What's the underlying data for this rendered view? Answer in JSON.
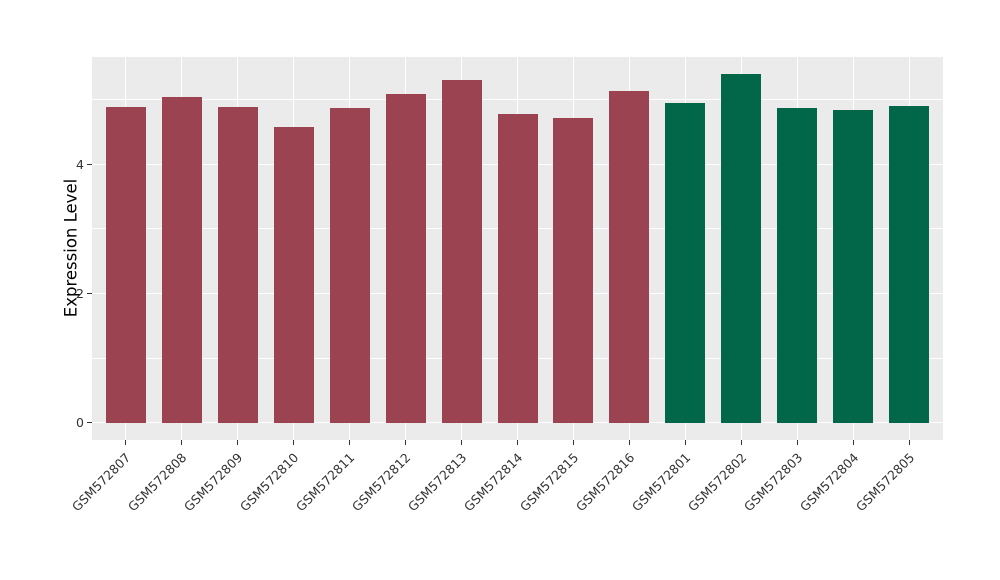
{
  "chart_data": {
    "type": "bar",
    "title": "",
    "xlabel": "",
    "ylabel": "Expression Level",
    "categories": [
      "GSM572807",
      "GSM572808",
      "GSM572809",
      "GSM572810",
      "GSM572811",
      "GSM572812",
      "GSM572813",
      "GSM572814",
      "GSM572815",
      "GSM572816",
      "GSM572801",
      "GSM572802",
      "GSM572803",
      "GSM572804",
      "GSM572805"
    ],
    "values": [
      4.89,
      5.04,
      4.88,
      4.58,
      4.87,
      5.08,
      5.31,
      4.78,
      4.72,
      5.13,
      4.95,
      5.4,
      4.87,
      4.84,
      4.9
    ],
    "bar_colors": [
      "#9B4351",
      "#9B4351",
      "#9B4351",
      "#9B4351",
      "#9B4351",
      "#9B4351",
      "#9B4351",
      "#9B4351",
      "#9B4351",
      "#9B4351",
      "#026748",
      "#026748",
      "#026748",
      "#026748",
      "#026748"
    ],
    "color_legend": {
      "maroon_group": {
        "hex": "#9B4351",
        "categories": [
          "GSM572807",
          "GSM572808",
          "GSM572809",
          "GSM572810",
          "GSM572811",
          "GSM572812",
          "GSM572813",
          "GSM572814",
          "GSM572815",
          "GSM572816"
        ]
      },
      "green_group": {
        "hex": "#026748",
        "categories": [
          "GSM572801",
          "GSM572802",
          "GSM572803",
          "GSM572804",
          "GSM572805"
        ]
      }
    },
    "yticks": [
      0,
      2,
      4
    ],
    "yticks_minor": [
      1,
      3,
      5
    ],
    "ylim": [
      -0.27,
      5.66
    ],
    "grid": true,
    "legend_position": "none",
    "panel_background": "#EBEBEB",
    "grid_color": "#FFFFFF",
    "figure_background": "#FFFFFF"
  }
}
